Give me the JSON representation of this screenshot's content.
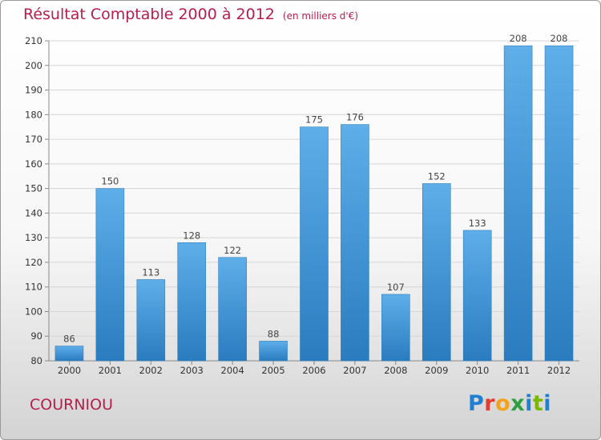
{
  "header": {
    "title": "Résultat Comptable 2000 à 2012",
    "unit": "(en milliers d'€)"
  },
  "footer": {
    "commune": "COURNIOU",
    "logo": [
      "P",
      "r",
      "o",
      "x",
      "i",
      "t",
      "i"
    ]
  },
  "colors": {
    "title": "#b51e4d",
    "bar_light": "#5aa9e6",
    "bar_dark": "#2a7fc0"
  },
  "chart_data": {
    "type": "bar",
    "title": "Résultat Comptable 2000 à 2012",
    "subtitle": "(en milliers d'€)",
    "categories": [
      "2000",
      "2001",
      "2002",
      "2003",
      "2004",
      "2005",
      "2006",
      "2007",
      "2008",
      "2009",
      "2010",
      "2011",
      "2012"
    ],
    "values": [
      86,
      150,
      113,
      128,
      122,
      88,
      175,
      176,
      107,
      152,
      133,
      208,
      208
    ],
    "ylim": [
      80,
      210
    ],
    "yticks": [
      80,
      90,
      100,
      110,
      120,
      130,
      140,
      150,
      160,
      170,
      180,
      190,
      200,
      210
    ],
    "grid": true,
    "data_labels": true
  }
}
